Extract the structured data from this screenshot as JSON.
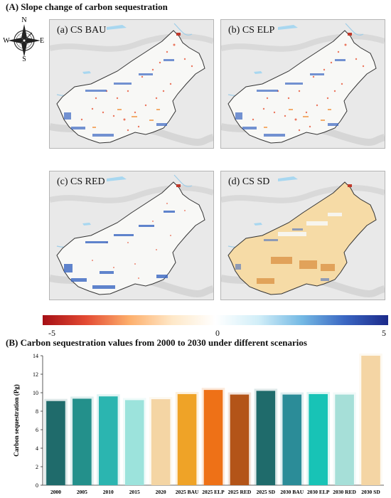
{
  "section_a": {
    "title": "(A) Slope change of carbon sequestration"
  },
  "compass": {
    "n": "N",
    "s": "S",
    "e": "E",
    "w": "W"
  },
  "panels": [
    {
      "label": "(a) CS BAU"
    },
    {
      "label": "(b) CS ELP"
    },
    {
      "label": "(c) CS RED"
    },
    {
      "label": "(d) CS SD"
    }
  ],
  "colorbar": {
    "colors": [
      "#a50f15",
      "#e34a33",
      "#fdae6b",
      "#fee8c8",
      "#ffffff",
      "#d1eef8",
      "#74b9e4",
      "#3a66c2",
      "#1c2a8a"
    ],
    "ticks": [
      "-5",
      "0",
      "5"
    ],
    "range": [
      -5,
      5
    ]
  },
  "section_b": {
    "title": "(B) Carbon sequestration values from 2000 to 2030 under different scenarios"
  },
  "chart_data": {
    "type": "bar",
    "ylabel": "Carbon sequestration (Pg)",
    "xlabel": "",
    "ylim": [
      0,
      14
    ],
    "yticks": [
      "0",
      "2",
      "4",
      "6",
      "8",
      "10",
      "12",
      "14"
    ],
    "categories": [
      "2000",
      "2005",
      "2010",
      "2015",
      "2020",
      "2025 BAU",
      "2025 ELP",
      "2025 RED",
      "2025 SD",
      "2030 BAU",
      "2030 ELP",
      "2030 RED",
      "2030 SD"
    ],
    "values": [
      9.1,
      9.35,
      9.6,
      9.2,
      9.3,
      9.85,
      10.3,
      9.8,
      10.2,
      9.8,
      9.85,
      9.8,
      14.0
    ],
    "colors": [
      "#1f6b6b",
      "#23908b",
      "#2bb5b0",
      "#9ce3dc",
      "#f4d5a4",
      "#efa327",
      "#ee7117",
      "#b35418",
      "#1f6b6b",
      "#2b8c98",
      "#18c3b6",
      "#a6dfd8",
      "#f4d5a4"
    ]
  }
}
